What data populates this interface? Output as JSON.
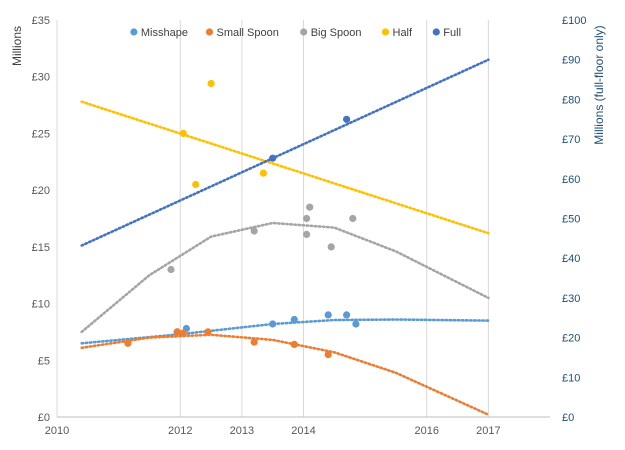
{
  "chart_data": {
    "type": "scatter",
    "x_axis": {
      "min": 2010,
      "max": 2018,
      "ticks": [
        2010,
        2012,
        2013,
        2014,
        2016,
        2017
      ],
      "tick_labels": [
        "2010",
        "2012",
        "2013",
        "2014",
        "2016",
        "2017"
      ]
    },
    "y_left": {
      "label": "Millions",
      "min": 0,
      "max": 35,
      "ticks": [
        0,
        5,
        10,
        15,
        20,
        25,
        30,
        35
      ],
      "tick_labels": [
        "£0",
        "£5",
        "£10",
        "£15",
        "£20",
        "£25",
        "£30",
        "£35"
      ]
    },
    "y_right": {
      "label": "Millions (full-floor only)",
      "min": 0,
      "max": 100,
      "ticks": [
        0,
        10,
        20,
        30,
        40,
        50,
        60,
        70,
        80,
        90,
        100
      ],
      "tick_labels": [
        "£0",
        "£10",
        "£20",
        "£30",
        "£40",
        "£50",
        "£60",
        "£70",
        "£80",
        "£90",
        "£100"
      ]
    },
    "grid": "vertical",
    "legend_position": "top",
    "series": [
      {
        "name": "Misshape",
        "color": "#5b9bd5",
        "axis": "left",
        "points": [
          [
            2011.95,
            7.5
          ],
          [
            2012.1,
            7.8
          ],
          [
            2013.5,
            8.2
          ],
          [
            2013.85,
            8.6
          ],
          [
            2014.4,
            9.0
          ],
          [
            2014.7,
            9.0
          ],
          [
            2014.85,
            8.2
          ]
        ],
        "trend": [
          [
            2010.4,
            6.5
          ],
          [
            2012.0,
            7.3
          ],
          [
            2013.5,
            8.2
          ],
          [
            2014.5,
            8.55
          ],
          [
            2015.5,
            8.6
          ],
          [
            2017.0,
            8.5
          ]
        ]
      },
      {
        "name": "Small Spoon",
        "color": "#ed7d31",
        "axis": "left",
        "points": [
          [
            2011.15,
            6.5
          ],
          [
            2011.95,
            7.5
          ],
          [
            2012.05,
            7.4
          ],
          [
            2012.45,
            7.5
          ],
          [
            2013.2,
            6.6
          ],
          [
            2013.85,
            6.4
          ],
          [
            2014.4,
            5.5
          ]
        ],
        "trend": [
          [
            2010.4,
            6.1
          ],
          [
            2011.5,
            7.0
          ],
          [
            2012.5,
            7.25
          ],
          [
            2013.5,
            6.8
          ],
          [
            2014.5,
            5.7
          ],
          [
            2015.5,
            3.9
          ],
          [
            2017.0,
            0.2
          ]
        ]
      },
      {
        "name": "Big Spoon",
        "color": "#a5a5a5",
        "axis": "left",
        "points": [
          [
            2011.85,
            13.0
          ],
          [
            2013.2,
            16.4
          ],
          [
            2014.05,
            17.5
          ],
          [
            2014.05,
            16.1
          ],
          [
            2014.1,
            18.5
          ],
          [
            2014.45,
            15.0
          ],
          [
            2014.8,
            17.5
          ]
        ],
        "trend": [
          [
            2010.4,
            7.5
          ],
          [
            2011.5,
            12.5
          ],
          [
            2012.5,
            15.9
          ],
          [
            2013.5,
            17.1
          ],
          [
            2014.5,
            16.7
          ],
          [
            2015.5,
            14.6
          ],
          [
            2017.0,
            10.5
          ]
        ]
      },
      {
        "name": "Half",
        "color": "#ffc000",
        "axis": "left",
        "points": [
          [
            2012.05,
            25.0
          ],
          [
            2012.25,
            20.5
          ],
          [
            2012.5,
            29.4
          ],
          [
            2013.35,
            21.5
          ]
        ],
        "trend": [
          [
            2010.4,
            27.8
          ],
          [
            2017.0,
            16.2
          ]
        ]
      },
      {
        "name": "Full",
        "color": "#4472c4",
        "axis": "right",
        "points": [
          [
            2013.5,
            65.2
          ],
          [
            2014.7,
            75.0
          ]
        ],
        "trend": [
          [
            2010.4,
            43.2
          ],
          [
            2017.0,
            90.0
          ]
        ]
      }
    ]
  }
}
